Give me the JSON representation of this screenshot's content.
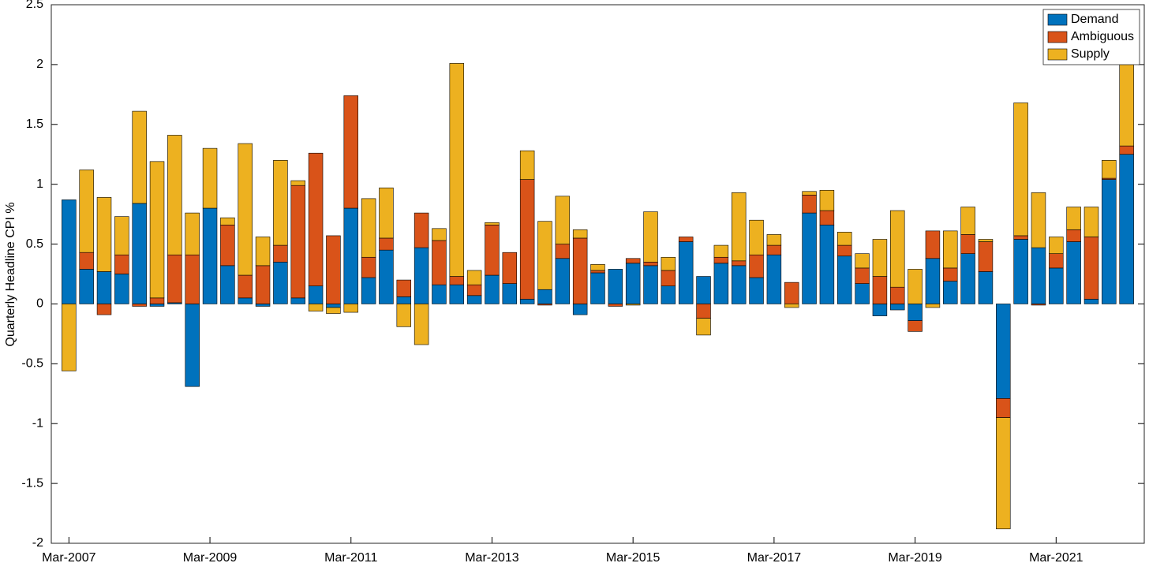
{
  "chart_data": {
    "type": "stacked-bar",
    "y_label": "Quarterly Headline CPI %",
    "categories": [
      "Mar-2007",
      null,
      null,
      null,
      null,
      null,
      null,
      null,
      "Mar-2009",
      null,
      null,
      null,
      null,
      null,
      null,
      null,
      "Mar-2011",
      null,
      null,
      null,
      null,
      null,
      null,
      null,
      "Mar-2013",
      null,
      null,
      null,
      null,
      null,
      null,
      null,
      "Mar-2015",
      null,
      null,
      null,
      null,
      null,
      null,
      null,
      "Mar-2017",
      null,
      null,
      null,
      null,
      null,
      null,
      null,
      "Mar-2019",
      null,
      null,
      null,
      null,
      null,
      null,
      null,
      "Mar-2021",
      null,
      null,
      null,
      null
    ],
    "series": [
      {
        "name": "Demand",
        "color": "#0072BD",
        "values": [
          0.87,
          0.29,
          0.27,
          0.25,
          0.84,
          -0.02,
          0.01,
          -0.69,
          0.8,
          0.32,
          0.05,
          -0.02,
          0.35,
          0.05,
          0.15,
          -0.03,
          0.8,
          0.22,
          0.45,
          0.06,
          0.47,
          0.16,
          0.16,
          0.07,
          0.24,
          0.17,
          0.04,
          0.12,
          0.38,
          -0.09,
          0.26,
          0.29,
          0.34,
          0.32,
          0.15,
          0.52,
          0.23,
          0.34,
          0.32,
          0.22,
          0.41,
          0,
          0.76,
          0.66,
          0.4,
          0.17,
          -0.1,
          -0.05,
          -0.14,
          0.38,
          0.19,
          0.42,
          0.27,
          -0.79,
          0.54,
          0.47,
          0.3,
          0.52,
          0.04,
          1.04,
          1.25
        ]
      },
      {
        "name": "Ambiguous",
        "color": "#D95319",
        "values": [
          0,
          0.14,
          -0.09,
          0.16,
          -0.02,
          0.05,
          0.4,
          0.41,
          0,
          0.34,
          0.19,
          0.32,
          0.14,
          0.94,
          1.11,
          0.57,
          0.94,
          0.17,
          0.1,
          0.14,
          0.29,
          0.37,
          0.07,
          0.09,
          0.42,
          0.26,
          1.0,
          -0.01,
          0.12,
          0.55,
          0.02,
          -0.02,
          0.04,
          0.03,
          0.13,
          0.04,
          -0.12,
          0.05,
          0.04,
          0.19,
          0.08,
          0.18,
          0.15,
          0.12,
          0.09,
          0.13,
          0.23,
          0.14,
          -0.09,
          0.23,
          0.11,
          0.16,
          0.25,
          -0.16,
          0.03,
          -0.01,
          0.12,
          0.1,
          0.52,
          0.01,
          0.07
        ]
      },
      {
        "name": "Supply",
        "color": "#EDB120",
        "values": [
          -0.56,
          0.69,
          0.62,
          0.32,
          0.77,
          1.14,
          1.0,
          0.35,
          0.5,
          0.06,
          1.1,
          0.24,
          0.71,
          0.04,
          -0.06,
          -0.05,
          -0.07,
          0.49,
          0.42,
          -0.19,
          -0.34,
          0.1,
          1.78,
          0.12,
          0.02,
          0,
          0.24,
          0.57,
          0.4,
          0.07,
          0.05,
          0,
          -0.01,
          0.42,
          0.11,
          0,
          -0.14,
          0.1,
          0.57,
          0.29,
          0.09,
          -0.03,
          0.03,
          0.17,
          0.11,
          0.12,
          0.31,
          0.64,
          0.29,
          -0.03,
          0.31,
          0.23,
          0.02,
          -0.93,
          1.11,
          0.46,
          0.14,
          0.19,
          0.25,
          0.15,
          0.81
        ]
      }
    ],
    "ylim": [
      -2,
      2.5
    ],
    "yticks": [
      -2,
      -1.5,
      -1,
      -0.5,
      0,
      0.5,
      1,
      1.5,
      2,
      2.5
    ],
    "grid": false,
    "legend": "northeast"
  }
}
